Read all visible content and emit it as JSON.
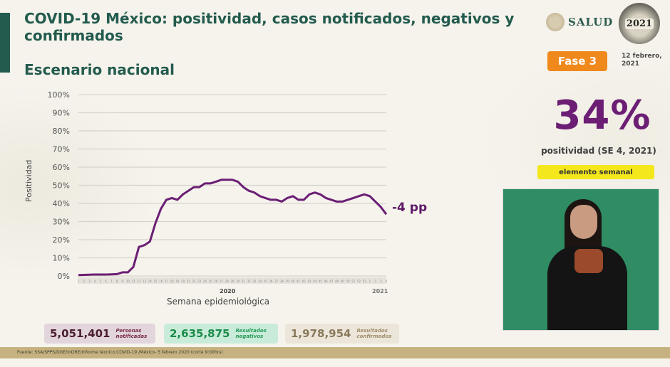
{
  "header": {
    "title": "COVID-19 México: positividad, casos notificados, negativos y confirmados",
    "subtitle": "Escenario nacional"
  },
  "logos": {
    "salud": "SALUD",
    "year": "2021"
  },
  "phase": {
    "label": "Fase 3",
    "color": "#f0891c"
  },
  "date": {
    "line1": "12 febrero,",
    "line2": "2021"
  },
  "positivity": {
    "value": "34%",
    "label": "positividad (SE 4, 2021)",
    "badge": "elemento semanal",
    "color": "#6b1e74"
  },
  "chart": {
    "y_label": "Positividad",
    "x_title": "Semana epidemiológica",
    "year_2020": "2020",
    "year_2021": "2021",
    "change_label": "-4 pp",
    "y_ticks": [
      "100%",
      "90%",
      "80%",
      "70%",
      "60%",
      "50%",
      "40%",
      "30%",
      "20%",
      "10%",
      "0%"
    ]
  },
  "chart_data": {
    "type": "line",
    "title": "COVID-19 México: positividad",
    "xlabel": "Semana epidemiológica",
    "ylabel": "Positividad",
    "ylim": [
      0,
      100
    ],
    "grid": true,
    "x": [
      "1",
      "2",
      "3",
      "4",
      "5",
      "6",
      "7",
      "8",
      "9",
      "10",
      "11",
      "12",
      "13",
      "14",
      "15",
      "16",
      "17",
      "18",
      "19",
      "20",
      "21",
      "22",
      "23",
      "24",
      "25",
      "26",
      "27",
      "28",
      "29",
      "30",
      "31",
      "32",
      "33",
      "34",
      "35",
      "36",
      "37",
      "38",
      "39",
      "40",
      "41",
      "42",
      "43",
      "44",
      "45",
      "46",
      "47",
      "48",
      "49",
      "50",
      "51",
      "52",
      "53",
      "1",
      "2",
      "3",
      "4"
    ],
    "x_groups": [
      {
        "label": "2020",
        "weeks": 53
      },
      {
        "label": "2021",
        "weeks": 4
      }
    ],
    "series": [
      {
        "name": "Positividad (%)",
        "color": "#6b1e74",
        "values": [
          0.5,
          0.6,
          0.7,
          0.8,
          0.8,
          0.8,
          0.9,
          1,
          2,
          2,
          5,
          16,
          17,
          19,
          29,
          37,
          42,
          43,
          42,
          45,
          47,
          49,
          49,
          51,
          51,
          52,
          53,
          53,
          53,
          52,
          49,
          47,
          46,
          44,
          43,
          42,
          42,
          41,
          43,
          44,
          42,
          42,
          45,
          46,
          45,
          43,
          42,
          41,
          41,
          42,
          43,
          44,
          45,
          44,
          41,
          38,
          34
        ]
      }
    ],
    "annotations": [
      "-4 pp"
    ]
  },
  "stats": [
    {
      "value": "5,051,401",
      "label_line1": "Personas",
      "label_line2": "notificadas"
    },
    {
      "value": "2,635,875",
      "label_line1": "Resultados",
      "label_line2": "negativos"
    },
    {
      "value": "1,978,954",
      "label_line1": "Resultados",
      "label_line2": "confirmados"
    }
  ],
  "footer": {
    "source": "Fuente: SSA/SPPS/DGE/InDRE/Informe técnico.COVID-19 /México- 5 febrero 2020 (corte 9:00hrs)"
  }
}
